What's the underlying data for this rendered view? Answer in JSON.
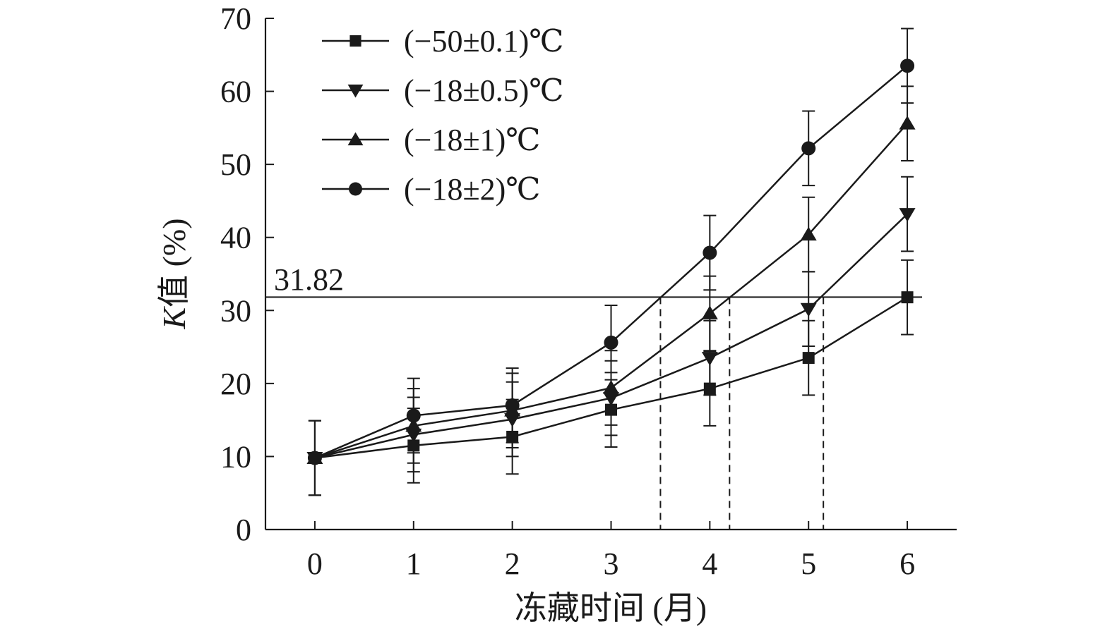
{
  "chart_data": {
    "type": "line",
    "xlabel": "冻藏时间 (月)",
    "ylabel_prefix": "K",
    "ylabel_suffix": "值 (%)",
    "x": [
      0,
      1,
      2,
      3,
      4,
      5,
      6
    ],
    "x_ticks": [
      "0",
      "1",
      "2",
      "3",
      "4",
      "5",
      "6"
    ],
    "xlim": [
      -0.5,
      6.5
    ],
    "ylim": [
      0,
      70
    ],
    "y_ticks": [
      "0",
      "10",
      "20",
      "30",
      "40",
      "50",
      "60",
      "70"
    ],
    "grid": false,
    "legend_position": "top-left",
    "series": [
      {
        "name": "(−50±0.1)℃",
        "marker": "square",
        "values": [
          9.8,
          11.5,
          12.7,
          16.4,
          19.3,
          23.5,
          31.8
        ],
        "errors": [
          5.1,
          5.1,
          5.1,
          5.1,
          5.1,
          5.1,
          5.1
        ]
      },
      {
        "name": "(−18±0.5)℃",
        "marker": "triangle-down",
        "values": [
          9.8,
          13.0,
          15.1,
          18.0,
          23.5,
          30.2,
          43.2
        ],
        "errors": [
          5.1,
          5.1,
          5.1,
          5.1,
          5.1,
          5.1,
          5.1
        ]
      },
      {
        "name": "(−18±1)℃",
        "marker": "triangle-up",
        "values": [
          9.8,
          14.2,
          16.3,
          19.4,
          29.6,
          40.4,
          55.6
        ],
        "errors": [
          5.1,
          5.1,
          5.1,
          5.1,
          5.1,
          5.1,
          5.1
        ]
      },
      {
        "name": "(−18±2)℃",
        "marker": "circle",
        "values": [
          9.8,
          15.6,
          17.0,
          25.6,
          37.9,
          52.2,
          63.5
        ],
        "errors": [
          5.1,
          5.1,
          5.1,
          5.1,
          5.1,
          5.1,
          5.1
        ]
      }
    ],
    "threshold": {
      "value": 31.82,
      "label": "31.82"
    },
    "crossings_x": [
      3.5,
      4.2,
      5.15
    ]
  }
}
